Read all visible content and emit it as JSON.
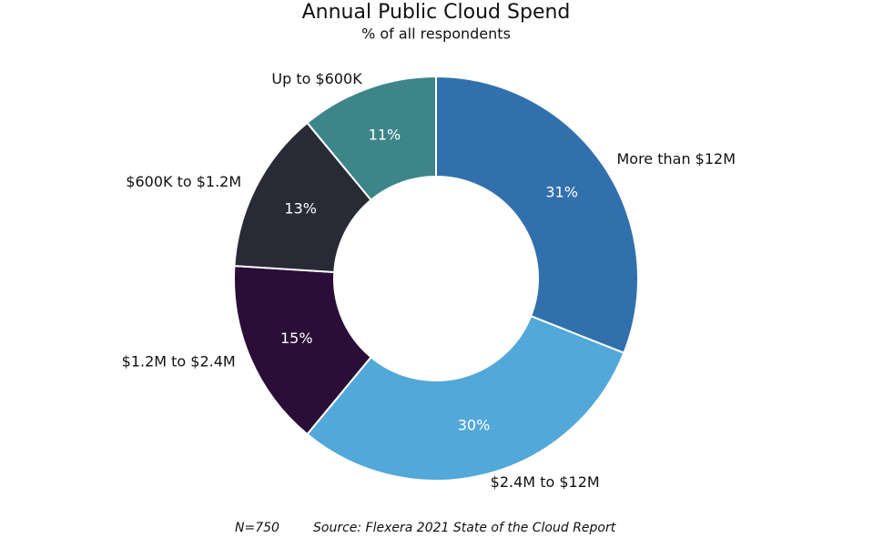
{
  "chart_data": {
    "type": "donut",
    "title": "Annual Public Cloud Spend",
    "subtitle": "% of all respondents",
    "categories": [
      "More than $12M",
      "$2.4M to $12M",
      "$1.2M to $2.4M",
      "$600K to $1.2M",
      "Up to $600K"
    ],
    "values": [
      31,
      30,
      15,
      13,
      11
    ],
    "value_labels": [
      "31%",
      "30%",
      "15%",
      "13%",
      "11%"
    ],
    "colors": [
      "#3170ad",
      "#52a8d8",
      "#2a0e38",
      "#282a36",
      "#3d8589"
    ],
    "footnotes": [
      "N=750",
      "Source: Flexera 2021 State of the Cloud Report"
    ]
  }
}
